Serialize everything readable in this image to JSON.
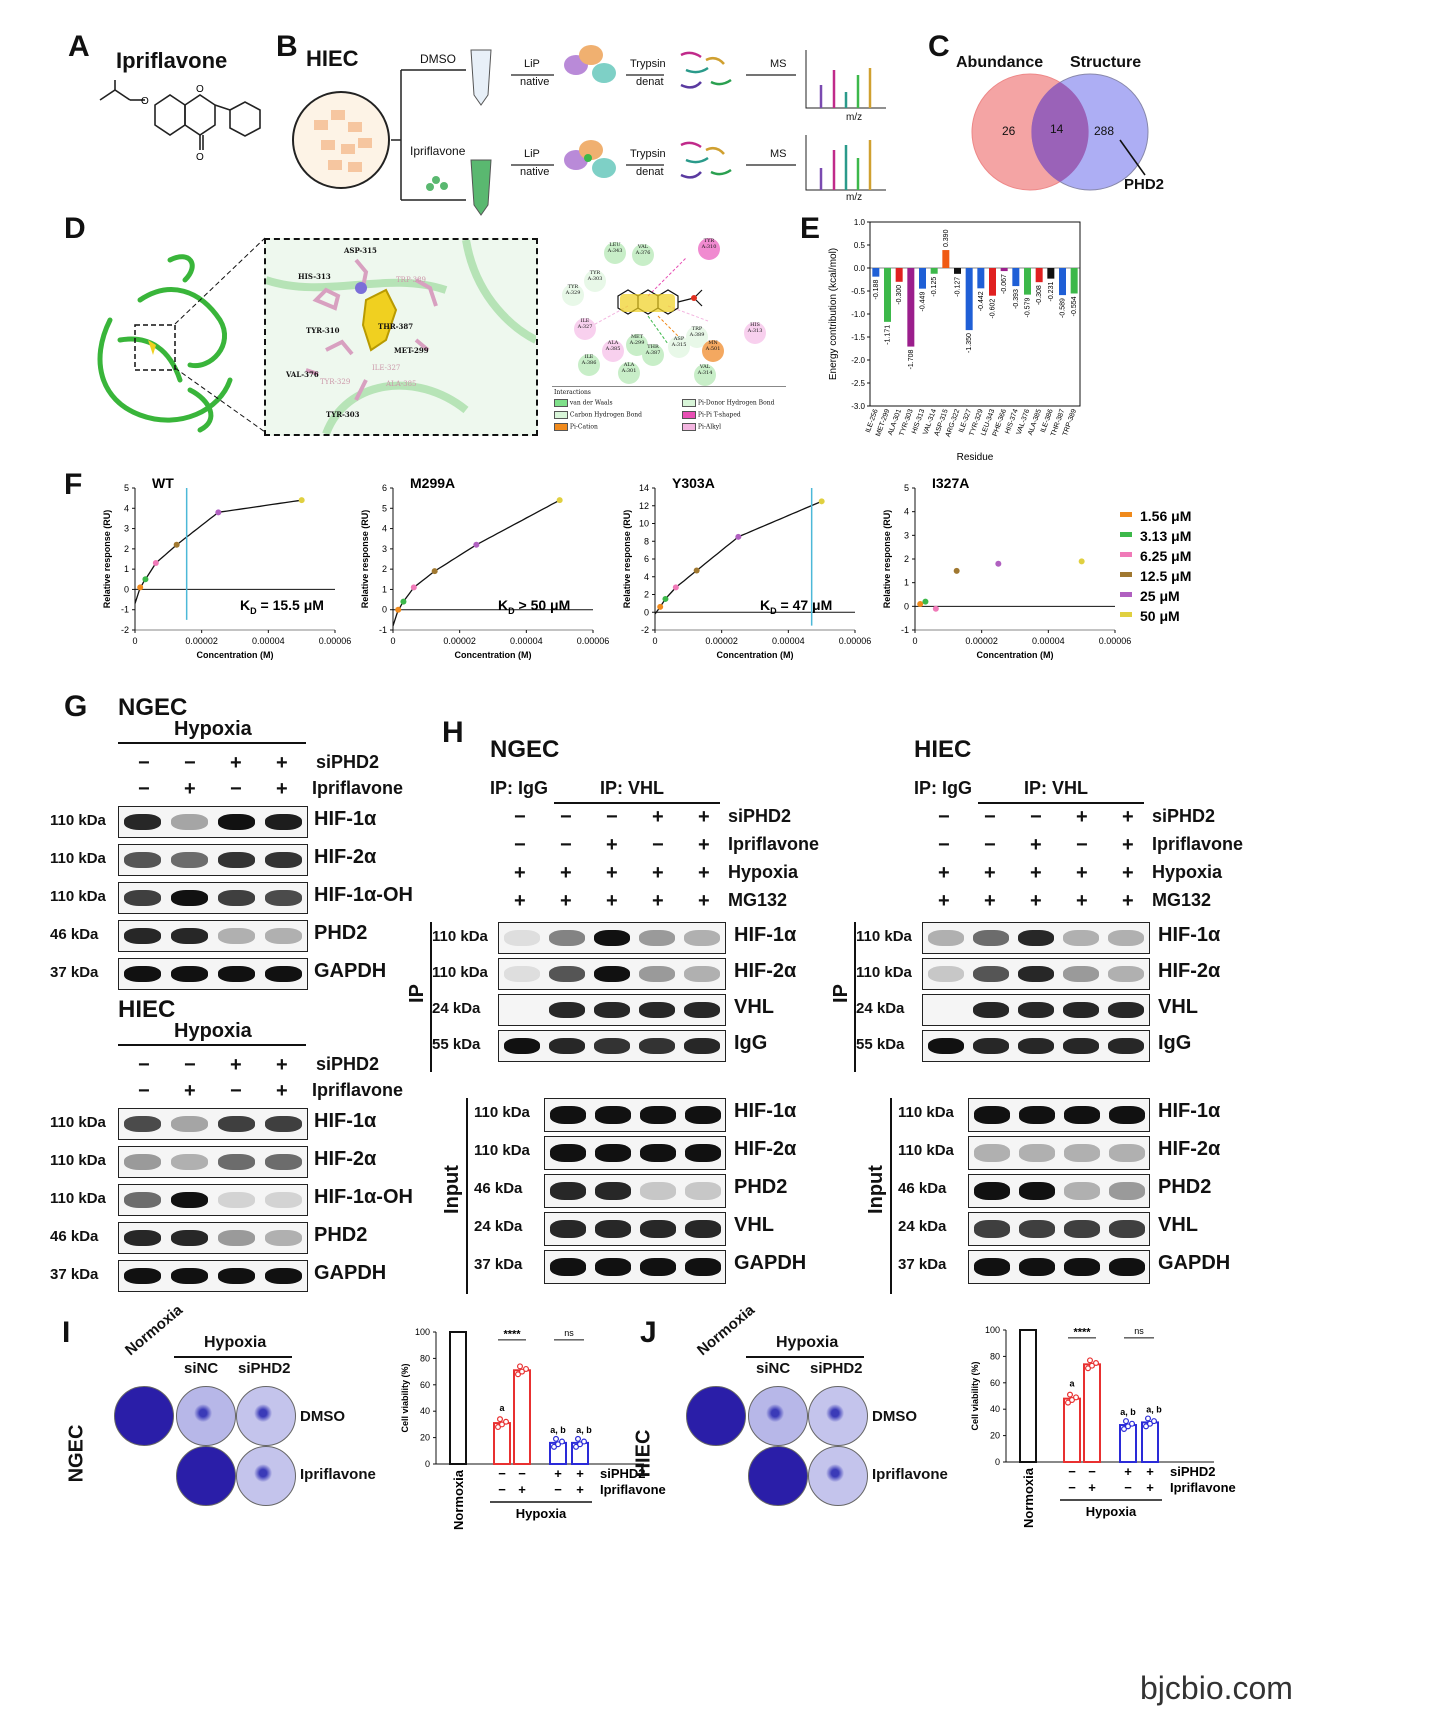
{
  "panels": {
    "A": {
      "letter": "A",
      "title": "Ipriflavone"
    },
    "B": {
      "letter": "B",
      "title": "HIEC",
      "arms": [
        {
          "treatment": "DMSO",
          "lip": "LiP",
          "native": "native",
          "trypsin": "Trypsin",
          "denat": "denat",
          "ms": "MS",
          "axis": "m/z"
        },
        {
          "treatment": "Ipriflavone",
          "lip": "LiP",
          "native": "native",
          "trypsin": "Trypsin",
          "denat": "denat",
          "ms": "MS",
          "axis": "m/z"
        }
      ]
    },
    "C": {
      "letter": "C",
      "left": "Abundance",
      "right": "Structure",
      "left_only": "26",
      "overlap": "14",
      "right_only": "288",
      "callout": "PHD2"
    },
    "D": {
      "letter": "D",
      "residues": [
        "ASP-315",
        "HIS-313",
        "TRP-389",
        "TYR-310",
        "THR-387",
        "MET-299",
        "VAL-376",
        "TYR-329",
        "ILE-327",
        "ALA-385",
        "TYR-303"
      ],
      "map_residues": [
        "LEU A:343",
        "VAL A:376",
        "TYR A:310",
        "TYR A:303",
        "TYR A:329",
        "ILE A:327",
        "HIS A:313",
        "ALA A:385",
        "MET A:299",
        "THR A:387",
        "ASP A:315",
        "TRP A:389",
        "MN A:501",
        "ILE A:386",
        "ALA A:301",
        "VAL A:314"
      ],
      "legend_title": "Interactions",
      "legend": [
        {
          "label": "van der Waals",
          "color": "#7fe08a"
        },
        {
          "label": "Pi-Donor Hydrogen Bond",
          "color": "#d8f5d8"
        },
        {
          "label": "Carbon Hydrogen Bond",
          "color": "#d8f5d8"
        },
        {
          "label": "Pi-Pi T-shaped",
          "color": "#e84fb4"
        },
        {
          "label": "Pi-Cation",
          "color": "#f08a1c"
        },
        {
          "label": "Pi-Alkyl",
          "color": "#f3b5e0"
        }
      ]
    },
    "E": {
      "letter": "E"
    },
    "F": {
      "letter": "F"
    },
    "G": {
      "letter": "G",
      "ngec": {
        "cell": "NGEC",
        "condition": "Hypoxia",
        "siPHD2": [
          "−",
          "−",
          "+",
          "+"
        ],
        "ipriflavone": [
          "−",
          "+",
          "−",
          "+"
        ],
        "row_labels": {
          "siPHD2": "siPHD2",
          "ipriflavone": "Ipriflavone"
        },
        "rows": [
          {
            "kda": "110 kDa",
            "protein": "HIF-1α"
          },
          {
            "kda": "110 kDa",
            "protein": "HIF-2α"
          },
          {
            "kda": "110 kDa",
            "protein": "HIF-1α-OH"
          },
          {
            "kda": "46 kDa",
            "protein": "PHD2"
          },
          {
            "kda": "37 kDa",
            "protein": "GAPDH"
          }
        ]
      },
      "hiec": {
        "cell": "HIEC",
        "condition": "Hypoxia",
        "siPHD2": [
          "−",
          "−",
          "+",
          "+"
        ],
        "ipriflavone": [
          "−",
          "+",
          "−",
          "+"
        ],
        "row_labels": {
          "siPHD2": "siPHD2",
          "ipriflavone": "Ipriflavone"
        },
        "rows": [
          {
            "kda": "110 kDa",
            "protein": "HIF-1α"
          },
          {
            "kda": "110 kDa",
            "protein": "HIF-2α"
          },
          {
            "kda": "110 kDa",
            "protein": "HIF-1α-OH"
          },
          {
            "kda": "46 kDa",
            "protein": "PHD2"
          },
          {
            "kda": "37 kDa",
            "protein": "GAPDH"
          }
        ]
      }
    },
    "H": {
      "letter": "H",
      "ngec": {
        "cell": "NGEC",
        "ip_igg": "IP: IgG",
        "ip_vhl": "IP: VHL",
        "treat_rows": [
          {
            "label": "siPHD2",
            "vals": [
              "−",
              "−",
              "−",
              "+",
              "+"
            ]
          },
          {
            "label": "Ipriflavone",
            "vals": [
              "−",
              "−",
              "+",
              "−",
              "+"
            ]
          },
          {
            "label": "Hypoxia",
            "vals": [
              "+",
              "+",
              "+",
              "+",
              "+"
            ]
          },
          {
            "label": "MG132",
            "vals": [
              "+",
              "+",
              "+",
              "+",
              "+"
            ]
          }
        ],
        "ip_label": "IP",
        "input_label": "Input",
        "ip_rows": [
          {
            "kda": "110 kDa",
            "protein": "HIF-1α"
          },
          {
            "kda": "110 kDa",
            "protein": "HIF-2α"
          },
          {
            "kda": "24 kDa",
            "protein": "VHL"
          },
          {
            "kda": "55 kDa",
            "protein": "IgG"
          }
        ],
        "input_rows": [
          {
            "kda": "110 kDa",
            "protein": "HIF-1α"
          },
          {
            "kda": "110 kDa",
            "protein": "HIF-2α"
          },
          {
            "kda": "46 kDa",
            "protein": "PHD2"
          },
          {
            "kda": "24 kDa",
            "protein": "VHL"
          },
          {
            "kda": "37 kDa",
            "protein": "GAPDH"
          }
        ]
      },
      "hiec": {
        "cell": "HIEC",
        "ip_igg": "IP: IgG",
        "ip_vhl": "IP: VHL",
        "treat_rows": [
          {
            "label": "siPHD2",
            "vals": [
              "−",
              "−",
              "−",
              "+",
              "+"
            ]
          },
          {
            "label": "Ipriflavone",
            "vals": [
              "−",
              "−",
              "+",
              "−",
              "+"
            ]
          },
          {
            "label": "Hypoxia",
            "vals": [
              "+",
              "+",
              "+",
              "+",
              "+"
            ]
          },
          {
            "label": "MG132",
            "vals": [
              "+",
              "+",
              "+",
              "+",
              "+"
            ]
          }
        ],
        "ip_label": "IP",
        "input_label": "Input",
        "ip_rows": [
          {
            "kda": "110 kDa",
            "protein": "HIF-1α"
          },
          {
            "kda": "110 kDa",
            "protein": "HIF-2α"
          },
          {
            "kda": "24 kDa",
            "protein": "VHL"
          },
          {
            "kda": "55 kDa",
            "protein": "IgG"
          }
        ],
        "input_rows": [
          {
            "kda": "110 kDa",
            "protein": "HIF-1α"
          },
          {
            "kda": "110 kDa",
            "protein": "HIF-2α"
          },
          {
            "kda": "46 kDa",
            "protein": "PHD2"
          },
          {
            "kda": "24 kDa",
            "protein": "VHL"
          },
          {
            "kda": "37 kDa",
            "protein": "GAPDH"
          }
        ]
      }
    },
    "I": {
      "letter": "I",
      "cell": "NGEC",
      "normoxia": "Normoxia",
      "hypoxia": "Hypoxia",
      "siNC": "siNC",
      "siPHD2": "siPHD2",
      "dmso": "DMSO",
      "ipriflavone": "Ipriflavone"
    },
    "J": {
      "letter": "J",
      "cell": "HIEC",
      "normoxia": "Normoxia",
      "hypoxia": "Hypoxia",
      "siNC": "siNC",
      "siPHD2": "siPHD2",
      "dmso": "DMSO",
      "ipriflavone": "Ipriflavone"
    }
  },
  "watermark": "bjcbio.com",
  "chart_data": [
    {
      "id": "E",
      "type": "bar",
      "ylabel": "Energy contribution (kcal/mol)",
      "xlabel": "Residue",
      "ylim": [
        -3.0,
        1.0
      ],
      "yticks": [
        1.0,
        0.5,
        0.0,
        -0.5,
        -1.0,
        -1.5,
        -2.0,
        -2.5,
        -3.0
      ],
      "categories": [
        "ILE-256",
        "MET-299",
        "ALA-301",
        "TYR-303",
        "HIS-313",
        "VAL-314",
        "ASP-315",
        "ARG-322",
        "ILE-327",
        "TYR-329",
        "LEU-343",
        "PHE-366",
        "HIS-374",
        "VAL-376",
        "ALA-385",
        "ILE-386",
        "THR-387",
        "TRP-389"
      ],
      "values": [
        -0.188,
        -1.171,
        -0.3,
        -1.708,
        -0.449,
        -0.125,
        0.39,
        -0.127,
        -1.35,
        -0.442,
        -0.602,
        -0.067,
        -0.393,
        -0.579,
        -0.308,
        -0.231,
        -0.589,
        -0.554
      ],
      "colors": [
        "#1f5fd6",
        "#3cb84a",
        "#e02020",
        "#9b1e8c",
        "#1f5fd6",
        "#3cb84a",
        "#f05a14",
        "#111111",
        "#1f5fd6",
        "#1f5fd6",
        "#e02020",
        "#9b1e8c",
        "#1f5fd6",
        "#3cb84a",
        "#e02020",
        "#111111",
        "#1f5fd6",
        "#3cb84a"
      ]
    },
    {
      "id": "F",
      "type": "scatter",
      "subplots": [
        {
          "title": "WT",
          "kd": "K",
          "kd_sub": "D",
          "kd_rest": " = 15.5 μM",
          "ylim": [
            -2,
            5
          ],
          "yticks": [
            -2,
            -1,
            0,
            1,
            2,
            3,
            4,
            5
          ],
          "fit": true,
          "vline": 1.55e-05,
          "points": [
            [
              1.56e-06,
              0.1
            ],
            [
              3.13e-06,
              0.5
            ],
            [
              6.25e-06,
              1.3
            ],
            [
              1.25e-05,
              2.2
            ],
            [
              2.5e-05,
              3.8
            ],
            [
              5e-05,
              4.4
            ]
          ]
        },
        {
          "title": "M299A",
          "kd": "K",
          "kd_sub": "D",
          "kd_rest": " > 50 μM",
          "ylim": [
            -1,
            6
          ],
          "yticks": [
            -1,
            0,
            1,
            2,
            3,
            4,
            5,
            6
          ],
          "fit": true,
          "vline": null,
          "points": [
            [
              1.56e-06,
              0.0
            ],
            [
              3.13e-06,
              0.4
            ],
            [
              6.25e-06,
              1.1
            ],
            [
              1.25e-05,
              1.9
            ],
            [
              2.5e-05,
              3.2
            ],
            [
              5e-05,
              5.4
            ]
          ]
        },
        {
          "title": "Y303A",
          "kd": "K",
          "kd_sub": "D",
          "kd_rest": " = 47 μM",
          "ylim": [
            -2,
            14
          ],
          "yticks": [
            -2,
            0,
            2,
            4,
            6,
            8,
            10,
            12,
            14
          ],
          "fit": true,
          "vline": 4.7e-05,
          "points": [
            [
              1.56e-06,
              0.6
            ],
            [
              3.13e-06,
              1.5
            ],
            [
              6.25e-06,
              2.8
            ],
            [
              1.25e-05,
              4.7
            ],
            [
              2.5e-05,
              8.5
            ],
            [
              5e-05,
              12.5
            ]
          ]
        },
        {
          "title": "I327A",
          "kd": "",
          "kd_sub": "",
          "kd_rest": "",
          "ylim": [
            -1,
            5
          ],
          "yticks": [
            -1,
            0,
            1,
            2,
            3,
            4,
            5
          ],
          "fit": false,
          "vline": null,
          "points": [
            [
              1.56e-06,
              0.1
            ],
            [
              3.13e-06,
              0.2
            ],
            [
              6.25e-06,
              -0.1
            ],
            [
              1.25e-05,
              1.5
            ],
            [
              2.5e-05,
              1.8
            ],
            [
              5e-05,
              1.9
            ]
          ]
        }
      ],
      "xlabel": "Concentration (M)",
      "ylabel": "Relative response (RU)",
      "xticks": [
        "0",
        "0.00002",
        "0.00004",
        "0.00006"
      ],
      "legend": [
        "1.56 μM",
        "3.13 μM",
        "6.25 μM",
        "12.5 μM",
        "25 μM",
        "50 μM"
      ],
      "point_colors": [
        "#f08a1c",
        "#3cb84a",
        "#f07ab8",
        "#a07830",
        "#b060c0",
        "#e0d040"
      ]
    },
    {
      "id": "I",
      "type": "bar",
      "ylabel": "Cell viability (%)",
      "ylim": [
        0,
        100
      ],
      "yticks": [
        0,
        20,
        40,
        60,
        80,
        100
      ],
      "categories": [
        "Normoxia",
        "Hypoxia - -",
        "Hypoxia - +",
        "Hypoxia + -",
        "Hypoxia + +"
      ],
      "values": [
        100,
        31,
        71,
        16,
        16
      ],
      "siPHD2": [
        "−",
        "−",
        "+",
        "+"
      ],
      "ipriflavone": [
        "−",
        "+",
        "−",
        "+"
      ],
      "sig1": "****",
      "sig2": "ns",
      "letter_a": "a",
      "letter_ab": "a, b"
    },
    {
      "id": "J",
      "type": "bar",
      "ylabel": "Cell viability (%)",
      "ylim": [
        0,
        100
      ],
      "yticks": [
        0,
        20,
        40,
        60,
        80,
        100
      ],
      "categories": [
        "Normoxia",
        "Hypoxia - -",
        "Hypoxia - +",
        "Hypoxia + -",
        "Hypoxia + +"
      ],
      "values": [
        100,
        48,
        74,
        28,
        30
      ],
      "siPHD2": [
        "−",
        "−",
        "+",
        "+"
      ],
      "ipriflavone": [
        "−",
        "+",
        "−",
        "+"
      ],
      "sig1": "****",
      "sig2": "ns",
      "letter_a": "a",
      "letter_ab": "a, b"
    }
  ]
}
